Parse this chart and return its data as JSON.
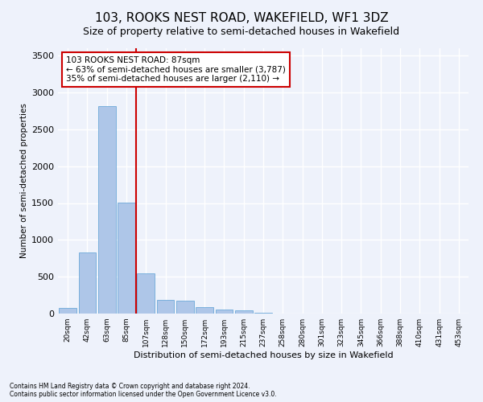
{
  "title": "103, ROOKS NEST ROAD, WAKEFIELD, WF1 3DZ",
  "subtitle": "Size of property relative to semi-detached houses in Wakefield",
  "xlabel": "Distribution of semi-detached houses by size in Wakefield",
  "ylabel": "Number of semi-detached properties",
  "categories": [
    "20sqm",
    "42sqm",
    "63sqm",
    "85sqm",
    "107sqm",
    "128sqm",
    "150sqm",
    "172sqm",
    "193sqm",
    "215sqm",
    "237sqm",
    "258sqm",
    "280sqm",
    "301sqm",
    "323sqm",
    "345sqm",
    "366sqm",
    "388sqm",
    "410sqm",
    "431sqm",
    "453sqm"
  ],
  "values": [
    75,
    830,
    2810,
    1510,
    550,
    185,
    170,
    90,
    55,
    40,
    15,
    0,
    0,
    0,
    0,
    0,
    0,
    0,
    0,
    0,
    0
  ],
  "bar_color": "#aec6e8",
  "bar_edge_color": "#5a9fd4",
  "highlight_color": "#cc0000",
  "annotation_text": "103 ROOKS NEST ROAD: 87sqm\n← 63% of semi-detached houses are smaller (3,787)\n35% of semi-detached houses are larger (2,110) →",
  "annotation_box_color": "#ffffff",
  "annotation_box_edge": "#cc0000",
  "ylim": [
    0,
    3600
  ],
  "yticks": [
    0,
    500,
    1000,
    1500,
    2000,
    2500,
    3000,
    3500
  ],
  "footer1": "Contains HM Land Registry data © Crown copyright and database right 2024.",
  "footer2": "Contains public sector information licensed under the Open Government Licence v3.0.",
  "bg_color": "#eef2fb",
  "plot_bg_color": "#eef2fb",
  "grid_color": "#ffffff",
  "title_fontsize": 11,
  "subtitle_fontsize": 9
}
